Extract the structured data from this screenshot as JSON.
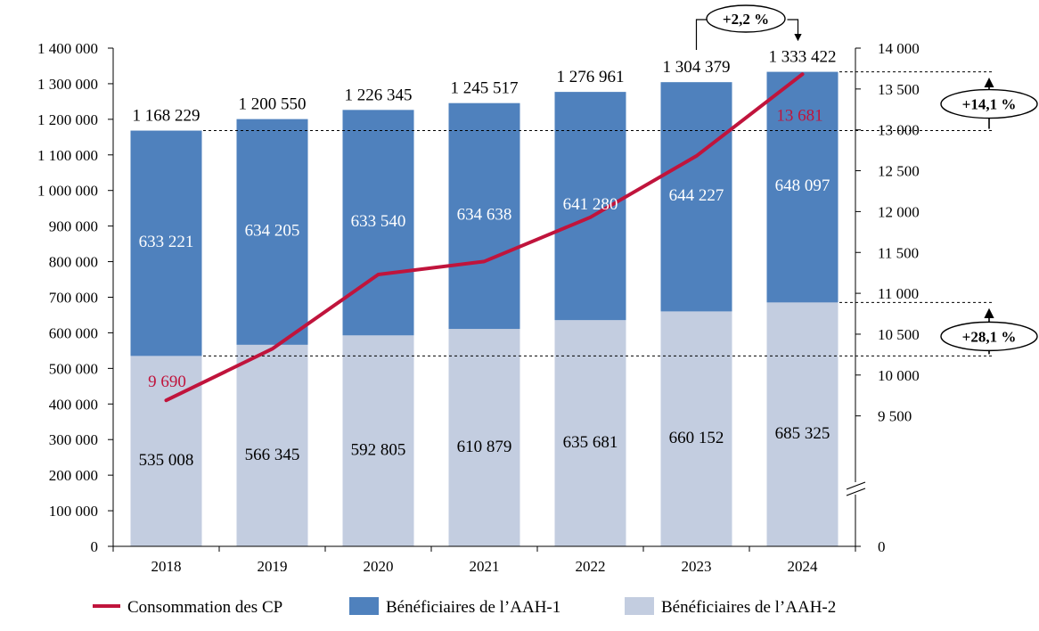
{
  "chart_data": {
    "type": "bar",
    "stacked": true,
    "categories": [
      "2018",
      "2019",
      "2020",
      "2021",
      "2022",
      "2023",
      "2024"
    ],
    "series": [
      {
        "name": "Bénéficiaires de l’AAH-2",
        "kind": "bar",
        "axis": "left",
        "color": "#c3cde0",
        "values": [
          535008,
          566345,
          592805,
          610879,
          635681,
          660152,
          685325
        ],
        "labels": [
          "535 008",
          "566 345",
          "592 805",
          "610 879",
          "635 681",
          "660 152",
          "685 325"
        ]
      },
      {
        "name": "Bénéficiaires de l’AAH-1",
        "kind": "bar",
        "axis": "left",
        "color": "#4f81bd",
        "values": [
          633221,
          634205,
          633540,
          634638,
          641280,
          644227,
          648097
        ],
        "labels": [
          "633 221",
          "634 205",
          "633 540",
          "634 638",
          "641 280",
          "644 227",
          "648 097"
        ]
      },
      {
        "name": "Consommation des CP",
        "kind": "line",
        "axis": "right",
        "color": "#c0143c",
        "values": [
          9690,
          10320,
          11230,
          11390,
          11930,
          12680,
          13681
        ],
        "point_labels": [
          "9 690",
          "",
          "",
          "",
          "",
          "",
          "13 681"
        ]
      }
    ],
    "totals": [
      1168229,
      1200550,
      1226345,
      1245517,
      1276961,
      1304379,
      1333422
    ],
    "total_labels": [
      "1 168 229",
      "1 200 550",
      "1 226 345",
      "1 245 517",
      "1 276 961",
      "1 304 379",
      "1 333 422"
    ],
    "ylim_left": [
      0,
      1400000
    ],
    "yticks_left": [
      "0",
      "100 000",
      "200 000",
      "300 000",
      "400 000",
      "500 000",
      "600 000",
      "700 000",
      "800 000",
      "900 000",
      "1 000 000",
      "1 100 000",
      "1 200 000",
      "1 300 000",
      "1 400 000"
    ],
    "ylim_right": [
      9000,
      14000
    ],
    "yticks_right_values": [
      0,
      9500,
      10000,
      10500,
      11000,
      11500,
      12000,
      12500,
      13000,
      13500,
      14000
    ],
    "yticks_right": [
      "0",
      "9 500",
      "10 000",
      "10 500",
      "11 000",
      "11 500",
      "12 000",
      "12 500",
      "13 000",
      "13 500",
      "14 000"
    ],
    "right_axis_break": true,
    "annotations": [
      {
        "text": "+2,2 %",
        "from": "2023 total",
        "to": "2024 total"
      },
      {
        "text": "+14,1 %",
        "from": "2018 total",
        "to": "2024 total"
      },
      {
        "text": "+28,1 %",
        "from": "2018 AAH-2",
        "to": "2024 AAH-2"
      }
    ],
    "legend_position": "bottom",
    "grid": false,
    "title": "",
    "xlabel": "",
    "ylabel": ""
  }
}
